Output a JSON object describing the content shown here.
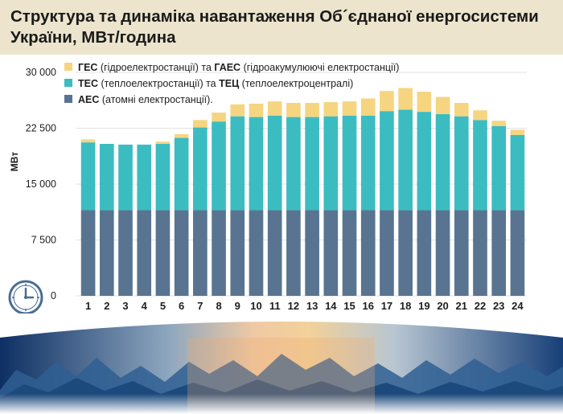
{
  "header": {
    "title_line1": "Структура та динаміка навантаження Об´єднаної енергосистеми",
    "title_line2": "України, МВт/година"
  },
  "colors": {
    "header_bg": "#ece4cc",
    "hes": "#f6d581",
    "tes": "#3bbcc1",
    "aes": "#587490"
  },
  "chart_data": {
    "type": "bar",
    "stacked": true,
    "title": "Структура та динаміка навантаження Об´єднаної енергосистеми України, МВт/година",
    "xlabel": "",
    "ylabel": "МВт",
    "ylim": [
      0,
      30000
    ],
    "yticks": [
      0,
      7500,
      15000,
      22500,
      30000
    ],
    "ytick_labels": [
      "0",
      "7 500",
      "15 000",
      "22 500",
      "30 000"
    ],
    "categories": [
      "1",
      "2",
      "3",
      "4",
      "5",
      "6",
      "7",
      "8",
      "9",
      "10",
      "11",
      "12",
      "13",
      "14",
      "15",
      "16",
      "17",
      "18",
      "19",
      "20",
      "21",
      "22",
      "23",
      "24"
    ],
    "legend": [
      {
        "key": "hes",
        "bold": "ГЕС",
        "text1": " (гідроелектростанції) та ",
        "bold2": "ГАЕС",
        "text2": " (гідроакумулюючі електростанції)"
      },
      {
        "key": "tes",
        "bold": "ТЕС",
        "text1": " (теплоелектростанції) та ",
        "bold2": "ТЕЦ",
        "text2": " (теплоелектроцентралі)"
      },
      {
        "key": "aes",
        "bold": "АЕС",
        "text1": " (атомні електростанції).",
        "bold2": "",
        "text2": ""
      }
    ],
    "series": [
      {
        "name": "АЕС (атомні електростанції)",
        "key": "aes",
        "values": [
          11500,
          11500,
          11500,
          11500,
          11500,
          11500,
          11500,
          11500,
          11500,
          11500,
          11500,
          11500,
          11500,
          11500,
          11500,
          11500,
          11500,
          11500,
          11500,
          11500,
          11500,
          11500,
          11500,
          11500
        ]
      },
      {
        "name": "ТЕС (теплоелектростанції) та ТЕЦ (теплоелектроцентралі)",
        "key": "tes",
        "values": [
          9100,
          8900,
          8800,
          8800,
          8900,
          9700,
          11100,
          11900,
          12600,
          12500,
          12700,
          12500,
          12500,
          12600,
          12700,
          12700,
          13300,
          13500,
          13200,
          12900,
          12600,
          12100,
          11300,
          10100
        ]
      },
      {
        "name": "ГЕС (гідроелектростанції) та ГАЕС (гідроакумулюючі електростанції)",
        "key": "hes",
        "values": [
          400,
          0,
          0,
          0,
          300,
          500,
          1000,
          1200,
          1600,
          1800,
          1900,
          1900,
          1900,
          1900,
          1900,
          2300,
          2700,
          2900,
          2700,
          2300,
          1800,
          1300,
          700,
          700
        ]
      }
    ]
  }
}
